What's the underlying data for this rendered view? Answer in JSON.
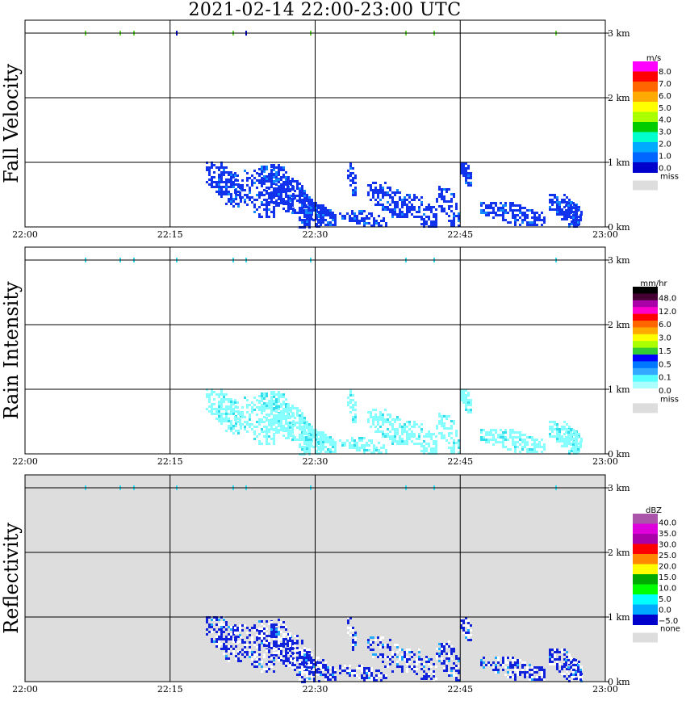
{
  "title": "2021-02-14   22:00-23:00 UTC",
  "colors": {
    "miss": "#dddddd",
    "grid": "#000000"
  },
  "chart_data": [
    {
      "type": "heatmap",
      "ylabel": "Fall Velocity",
      "x_ticks": [
        "22:00",
        "22:15",
        "22:30",
        "22:45",
        "23:00"
      ],
      "y_ticks": [
        "0 km",
        "1 km",
        "2 km",
        "3 km"
      ],
      "xlim": [
        "22:00",
        "23:00"
      ],
      "ylim_km": [
        0,
        3.0
      ],
      "grid": true,
      "background": "#ffffff",
      "colorbar": {
        "unit": "m/s",
        "labels": [
          "8.0",
          "7.0",
          "6.0",
          "5.0",
          "4.0",
          "3.0",
          "2.0",
          "1.0",
          "0.0"
        ],
        "colors": [
          "#ff00ff",
          "#ff0000",
          "#ff6600",
          "#ffaa00",
          "#ffff00",
          "#aaff00",
          "#00cc00",
          "#00ffcc",
          "#00aaff",
          "#0066ff",
          "#0000cc"
        ],
        "miss_label": "miss"
      },
      "main_color": "#1133ee",
      "accent_color": "#1188ff"
    },
    {
      "type": "heatmap",
      "ylabel": "Rain Intensity",
      "x_ticks": [
        "22:00",
        "22:15",
        "22:30",
        "22:45",
        "23:00"
      ],
      "y_ticks": [
        "0 km",
        "1 km",
        "2 km",
        "3 km"
      ],
      "xlim": [
        "22:00",
        "23:00"
      ],
      "ylim_km": [
        0,
        3.0
      ],
      "grid": true,
      "background": "#ffffff",
      "colorbar": {
        "unit": "mm/hr",
        "labels": [
          "48.0",
          "12.0",
          "6.0",
          "3.0",
          "1.5",
          "0.5",
          "0.1",
          "0.0"
        ],
        "colors": [
          "#000000",
          "#440033",
          "#aa00aa",
          "#ff00cc",
          "#ff0000",
          "#ff6600",
          "#ffaa00",
          "#ffff00",
          "#aaff00",
          "#33cc33",
          "#0000ff",
          "#0077ff",
          "#33aaff",
          "#55ffff",
          "#aaffff",
          "#ffffff"
        ],
        "miss_label": "miss"
      },
      "main_color": "#88ffff",
      "accent_color": "#33ddee"
    },
    {
      "type": "heatmap",
      "ylabel": "Reflectivity",
      "x_ticks": [
        "22:00",
        "22:15",
        "22:30",
        "22:45",
        "23:00"
      ],
      "y_ticks": [
        "0 km",
        "1 km",
        "2 km",
        "3 km"
      ],
      "xlim": [
        "22:00",
        "23:00"
      ],
      "ylim_km": [
        0,
        3.0
      ],
      "grid": true,
      "background": "#dddddd",
      "colorbar": {
        "unit": "dBZ",
        "labels": [
          "40.0",
          "35.0",
          "30.0",
          "25.0",
          "20.0",
          "15.0",
          "10.0",
          "5.0",
          "0.0",
          "−5.0"
        ],
        "colors": [
          "#aa55aa",
          "#dd00dd",
          "#aa00aa",
          "#ff0000",
          "#ff8800",
          "#ffff00",
          "#00aa00",
          "#00ff00",
          "#00ffff",
          "#00aaff",
          "#0000cc"
        ],
        "miss_label": "none"
      },
      "main_color": "#1122dd",
      "accent_color": "#22aaff",
      "clear_color": "#ffffff"
    }
  ]
}
